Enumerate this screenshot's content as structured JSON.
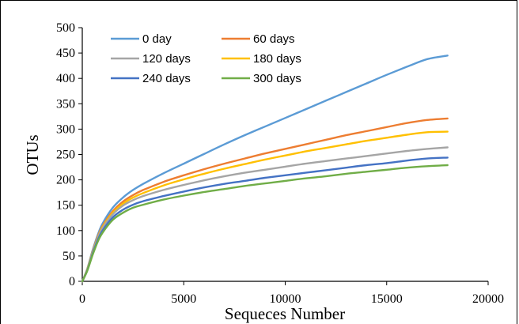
{
  "chart_data": {
    "type": "line",
    "xlabel": "Sequeces Number",
    "ylabel": "OTUs",
    "xlim": [
      0,
      20000
    ],
    "ylim": [
      0,
      500
    ],
    "x_ticks": [
      "0",
      "5000",
      "10000",
      "15000",
      "20000"
    ],
    "y_ticks": [
      "0",
      "50",
      "100",
      "150",
      "200",
      "250",
      "300",
      "350",
      "400",
      "450",
      "500"
    ],
    "legend_position": "top-left",
    "grid": false,
    "x": [
      0,
      250,
      500,
      750,
      1000,
      1500,
      2000,
      2500,
      3000,
      4000,
      5000,
      6000,
      7000,
      8000,
      9000,
      10000,
      11000,
      12000,
      13000,
      14000,
      15000,
      16000,
      17000,
      18000
    ],
    "series": [
      {
        "name": "0 day",
        "color": "#5B9BD5",
        "values": [
          0,
          25,
          60,
          90,
          114,
          145,
          165,
          180,
          192,
          213,
          232,
          251,
          270,
          288,
          305,
          322,
          339,
          356,
          373,
          390,
          407,
          423,
          438,
          445
        ]
      },
      {
        "name": "60 days",
        "color": "#ED7D31",
        "values": [
          0,
          24,
          58,
          87,
          109,
          138,
          157,
          170,
          180,
          196,
          209,
          221,
          232,
          242,
          252,
          261,
          270,
          279,
          288,
          296,
          304,
          312,
          318,
          321
        ]
      },
      {
        "name": "120 days",
        "color": "#A5A5A5",
        "values": [
          0,
          23,
          56,
          84,
          105,
          132,
          149,
          160,
          168,
          180,
          190,
          199,
          207,
          214,
          220,
          226,
          232,
          237,
          242,
          247,
          252,
          257,
          261,
          264
        ]
      },
      {
        "name": "180 days",
        "color": "#FFC000",
        "values": [
          0,
          24,
          57,
          85,
          107,
          135,
          153,
          165,
          174,
          189,
          201,
          212,
          222,
          231,
          240,
          248,
          256,
          263,
          270,
          277,
          283,
          289,
          294,
          295
        ]
      },
      {
        "name": "240 days",
        "color": "#4472C4",
        "values": [
          0,
          22,
          53,
          80,
          100,
          126,
          141,
          151,
          158,
          168,
          177,
          185,
          192,
          198,
          204,
          209,
          214,
          219,
          224,
          229,
          233,
          238,
          242,
          244
        ]
      },
      {
        "name": "300 days",
        "color": "#70AD47",
        "values": [
          0,
          21,
          51,
          77,
          96,
          121,
          135,
          145,
          151,
          161,
          169,
          176,
          182,
          188,
          193,
          198,
          203,
          207,
          212,
          216,
          220,
          224,
          227,
          229
        ]
      }
    ]
  }
}
